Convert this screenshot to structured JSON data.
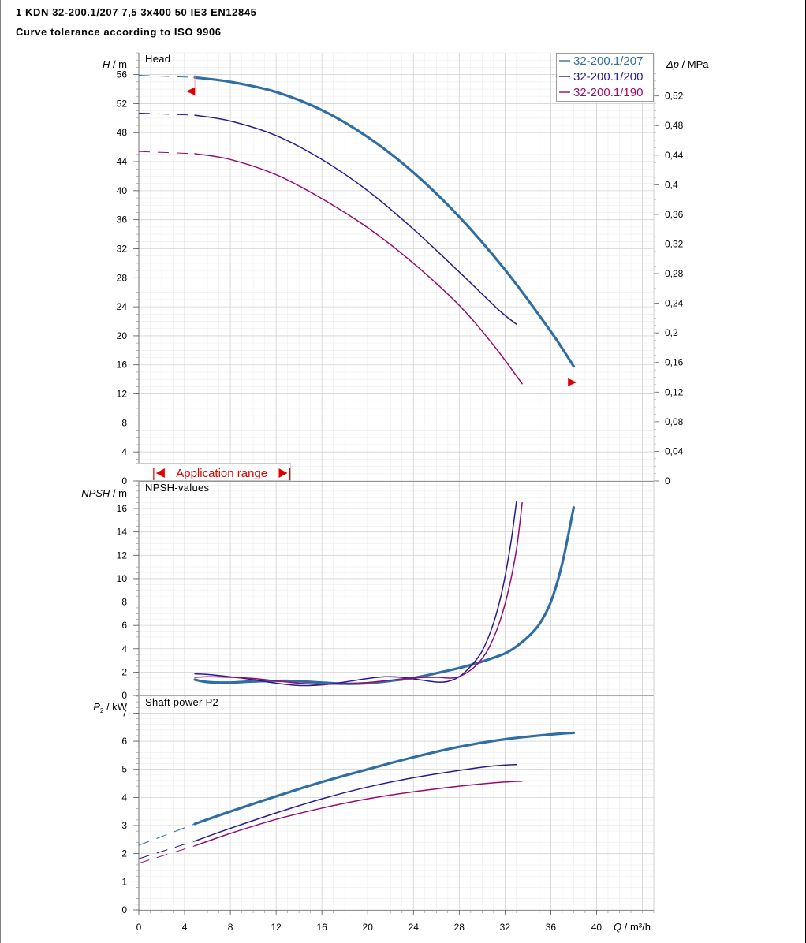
{
  "header": {
    "title": "1 KDN 32-200.1/207 7,5 3x400 50 IE3 EN12845",
    "subtitle": "Curve tolerance according to ISO 9906"
  },
  "colors": {
    "series_207": "#2f6ea5",
    "series_200": "#2a1a90",
    "series_190": "#990a6e",
    "application_range": "#e00000",
    "grid_minor": "#ececec",
    "grid_major": "#d4d4d4"
  },
  "application_range": {
    "label": "Application range",
    "x_start": 1.3,
    "x_end": 13.2
  },
  "legend": {
    "position": "top-right",
    "entries": [
      "32-200.1/207",
      "32-200.1/200",
      "32-200.1/190"
    ]
  },
  "chart_data": [
    {
      "type": "line",
      "panel": "head",
      "title": "Head",
      "ylabel_var": "H",
      "ylabel_unit": "m",
      "y2label_var": "Δp",
      "y2label_unit": "MPa",
      "xlim": [
        0,
        45
      ],
      "ylim": [
        0,
        59
      ],
      "yticks": [
        0,
        4,
        8,
        12,
        16,
        20,
        24,
        28,
        32,
        36,
        40,
        44,
        48,
        52,
        56
      ],
      "y2ticks": [
        "0",
        "0,04",
        "0,08",
        "0,12",
        "0,16",
        "0,2",
        "0,24",
        "0,28",
        "0,32",
        "0,36",
        "0,4",
        "0,44",
        "0,48",
        "0,52"
      ],
      "y2_values": [
        0,
        0.04,
        0.08,
        0.12,
        0.16,
        0.2,
        0.24,
        0.28,
        0.32,
        0.36,
        0.4,
        0.44,
        0.48,
        0.52
      ],
      "y2_to_y_factor": 102.04,
      "grid": true,
      "markers": [
        {
          "x": 4.9,
          "y": 53.7,
          "direction": "left"
        },
        {
          "x": 37.5,
          "y": 13.6,
          "direction": "right"
        }
      ],
      "series": [
        {
          "name": "32-200.1/207",
          "dashed": [
            [
              0,
              55.9
            ],
            [
              4.9,
              55.6
            ]
          ],
          "points": [
            [
              4.9,
              55.6
            ],
            [
              8,
              55
            ],
            [
              12,
              53.6
            ],
            [
              16,
              51.1
            ],
            [
              20,
              47.4
            ],
            [
              24,
              42.5
            ],
            [
              28,
              36.4
            ],
            [
              32,
              29.1
            ],
            [
              36,
              20.6
            ],
            [
              38,
              15.8
            ]
          ]
        },
        {
          "name": "32-200.1/200",
          "dashed": [
            [
              0,
              50.7
            ],
            [
              4.9,
              50.4
            ]
          ],
          "points": [
            [
              4.9,
              50.4
            ],
            [
              8,
              49.6
            ],
            [
              12,
              47.6
            ],
            [
              16,
              44.3
            ],
            [
              20,
              40
            ],
            [
              24,
              34.7
            ],
            [
              28,
              28.8
            ],
            [
              31.5,
              23.5
            ],
            [
              33,
              21.6
            ]
          ]
        },
        {
          "name": "32-200.1/190",
          "dashed": [
            [
              0,
              45.4
            ],
            [
              4.9,
              45.1
            ]
          ],
          "points": [
            [
              4.9,
              45.1
            ],
            [
              8,
              44.3
            ],
            [
              12,
              42.2
            ],
            [
              16,
              38.9
            ],
            [
              20,
              34.9
            ],
            [
              24,
              30
            ],
            [
              28,
              24.2
            ],
            [
              31,
              18.7
            ],
            [
              33.5,
              13.4
            ]
          ]
        }
      ]
    },
    {
      "type": "line",
      "panel": "npsh",
      "title": "NPSH-values",
      "ylabel_var": "NPSH",
      "ylabel_unit": "m",
      "xlim": [
        0,
        45
      ],
      "ylim": [
        0,
        18.3
      ],
      "yticks": [
        0,
        2,
        4,
        6,
        8,
        10,
        12,
        14,
        16
      ],
      "grid": true,
      "series": [
        {
          "name": "32-200.1/207",
          "points": [
            [
              4.9,
              1.35
            ],
            [
              6,
              1.15
            ],
            [
              8,
              1.1
            ],
            [
              10,
              1.2
            ],
            [
              13,
              1.25
            ],
            [
              16,
              1.1
            ],
            [
              18,
              1.0
            ],
            [
              20,
              1.05
            ],
            [
              22,
              1.25
            ],
            [
              24,
              1.5
            ],
            [
              26,
              1.9
            ],
            [
              28,
              2.35
            ],
            [
              30,
              2.9
            ],
            [
              32,
              3.6
            ],
            [
              33,
              4.2
            ],
            [
              34,
              5.0
            ],
            [
              35,
              6.1
            ],
            [
              36,
              8.0
            ],
            [
              37,
              11.3
            ],
            [
              38,
              16.1
            ]
          ]
        },
        {
          "name": "32-200.1/200",
          "points": [
            [
              4.9,
              1.85
            ],
            [
              6,
              1.8
            ],
            [
              8,
              1.6
            ],
            [
              10,
              1.35
            ],
            [
              12,
              1.05
            ],
            [
              14,
              0.85
            ],
            [
              16,
              0.9
            ],
            [
              18,
              1.15
            ],
            [
              20,
              1.45
            ],
            [
              21.5,
              1.6
            ],
            [
              23,
              1.55
            ],
            [
              24.5,
              1.35
            ],
            [
              26,
              1.15
            ],
            [
              27,
              1.2
            ],
            [
              28,
              1.6
            ],
            [
              29,
              2.5
            ],
            [
              30,
              3.8
            ],
            [
              31,
              6.2
            ],
            [
              31.8,
              9.2
            ],
            [
              32.5,
              13.0
            ],
            [
              33,
              16.6
            ]
          ]
        },
        {
          "name": "32-200.1/190",
          "points": [
            [
              4.9,
              1.55
            ],
            [
              6,
              1.6
            ],
            [
              8,
              1.55
            ],
            [
              10,
              1.45
            ],
            [
              12,
              1.25
            ],
            [
              14,
              1.05
            ],
            [
              16,
              0.95
            ],
            [
              18,
              1.0
            ],
            [
              20,
              1.1
            ],
            [
              22,
              1.3
            ],
            [
              24,
              1.5
            ],
            [
              26,
              1.55
            ],
            [
              27.5,
              1.5
            ],
            [
              28.5,
              1.85
            ],
            [
              29.5,
              2.6
            ],
            [
              30.5,
              3.9
            ],
            [
              31.5,
              6.2
            ],
            [
              32.3,
              9.0
            ],
            [
              33,
              12.5
            ],
            [
              33.5,
              16.5
            ]
          ]
        }
      ]
    },
    {
      "type": "line",
      "panel": "power",
      "title": "Shaft power P2",
      "ylabel_var": "P",
      "ylabel_sub": "2",
      "ylabel_unit": "kW",
      "xlabel_var": "Q",
      "xlabel_unit": "m³/h",
      "xlim": [
        0,
        45
      ],
      "ylim": [
        0,
        7.6
      ],
      "xticks": [
        0,
        4,
        8,
        12,
        16,
        20,
        24,
        28,
        32,
        36,
        40
      ],
      "yticks": [
        0,
        1,
        2,
        3,
        4,
        5,
        6,
        7
      ],
      "grid": true,
      "series": [
        {
          "name": "32-200.1/207",
          "dashed": [
            [
              0,
              2.3
            ],
            [
              4.9,
              3.06
            ]
          ],
          "points": [
            [
              4.9,
              3.06
            ],
            [
              8,
              3.5
            ],
            [
              12,
              4.04
            ],
            [
              16,
              4.55
            ],
            [
              20,
              5.0
            ],
            [
              24,
              5.43
            ],
            [
              28,
              5.8
            ],
            [
              32,
              6.07
            ],
            [
              36,
              6.24
            ],
            [
              38,
              6.3
            ]
          ]
        },
        {
          "name": "32-200.1/200",
          "dashed": [
            [
              0,
              1.82
            ],
            [
              4.9,
              2.45
            ]
          ],
          "points": [
            [
              4.9,
              2.45
            ],
            [
              8,
              2.9
            ],
            [
              12,
              3.45
            ],
            [
              16,
              3.95
            ],
            [
              20,
              4.37
            ],
            [
              24,
              4.7
            ],
            [
              28,
              4.96
            ],
            [
              31,
              5.12
            ],
            [
              33,
              5.17
            ]
          ]
        },
        {
          "name": "32-200.1/190",
          "dashed": [
            [
              0,
              1.66
            ],
            [
              4.9,
              2.28
            ]
          ],
          "points": [
            [
              4.9,
              2.28
            ],
            [
              8,
              2.72
            ],
            [
              12,
              3.22
            ],
            [
              16,
              3.62
            ],
            [
              20,
              3.95
            ],
            [
              24,
              4.2
            ],
            [
              28,
              4.4
            ],
            [
              31,
              4.52
            ],
            [
              33.5,
              4.58
            ]
          ]
        }
      ]
    }
  ]
}
